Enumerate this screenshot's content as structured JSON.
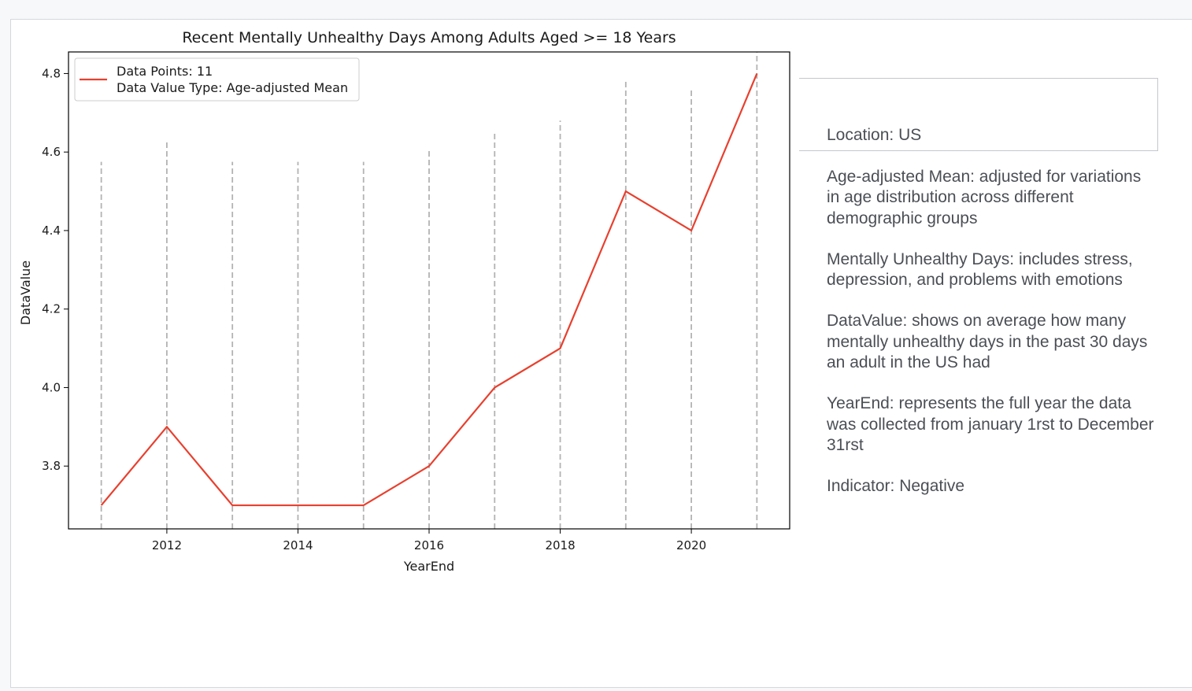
{
  "chart_data": {
    "type": "line",
    "title": "Recent Mentally Unhealthy Days Among Adults Aged >= 18 Years",
    "xlabel": "YearEnd",
    "ylabel": "DataValue",
    "x": [
      2011,
      2012,
      2013,
      2014,
      2015,
      2016,
      2017,
      2018,
      2019,
      2020,
      2021
    ],
    "series": [
      {
        "values": [
          3.7,
          3.9,
          3.7,
          3.7,
          3.7,
          3.8,
          4.0,
          4.1,
          4.5,
          4.4,
          4.8
        ],
        "color": "#e8402e"
      }
    ],
    "xticks": [
      "2012",
      "2014",
      "2016",
      "2018",
      "2020"
    ],
    "yticks": [
      "3.8",
      "4.0",
      "4.2",
      "4.4",
      "4.6",
      "4.8"
    ],
    "xlim": [
      2010.5,
      2021.5
    ],
    "ylim": [
      3.64,
      4.855
    ],
    "vlines_top": [
      4.575,
      4.63,
      4.575,
      4.575,
      4.575,
      4.605,
      4.65,
      4.68,
      4.78,
      4.76,
      4.855
    ],
    "legend": {
      "position": "top-left",
      "lines": [
        "Data Points: 11",
        "Data Value Type: Age-adjusted Mean"
      ]
    },
    "grid": false
  },
  "info": {
    "location": "Location: US",
    "paragraphs": [
      "Age-adjusted Mean: adjusted for variations in age distribution across different demographic groups",
      "Mentally Unhealthy Days: includes stress, depression, and problems with emotions",
      "DataValue: shows on average how many mentally unhealthy days in the past 30 days an adult in the US had",
      "YearEnd: represents the full year the data was collected from january 1rst to December 31rst",
      "Indicator: Negative"
    ]
  }
}
